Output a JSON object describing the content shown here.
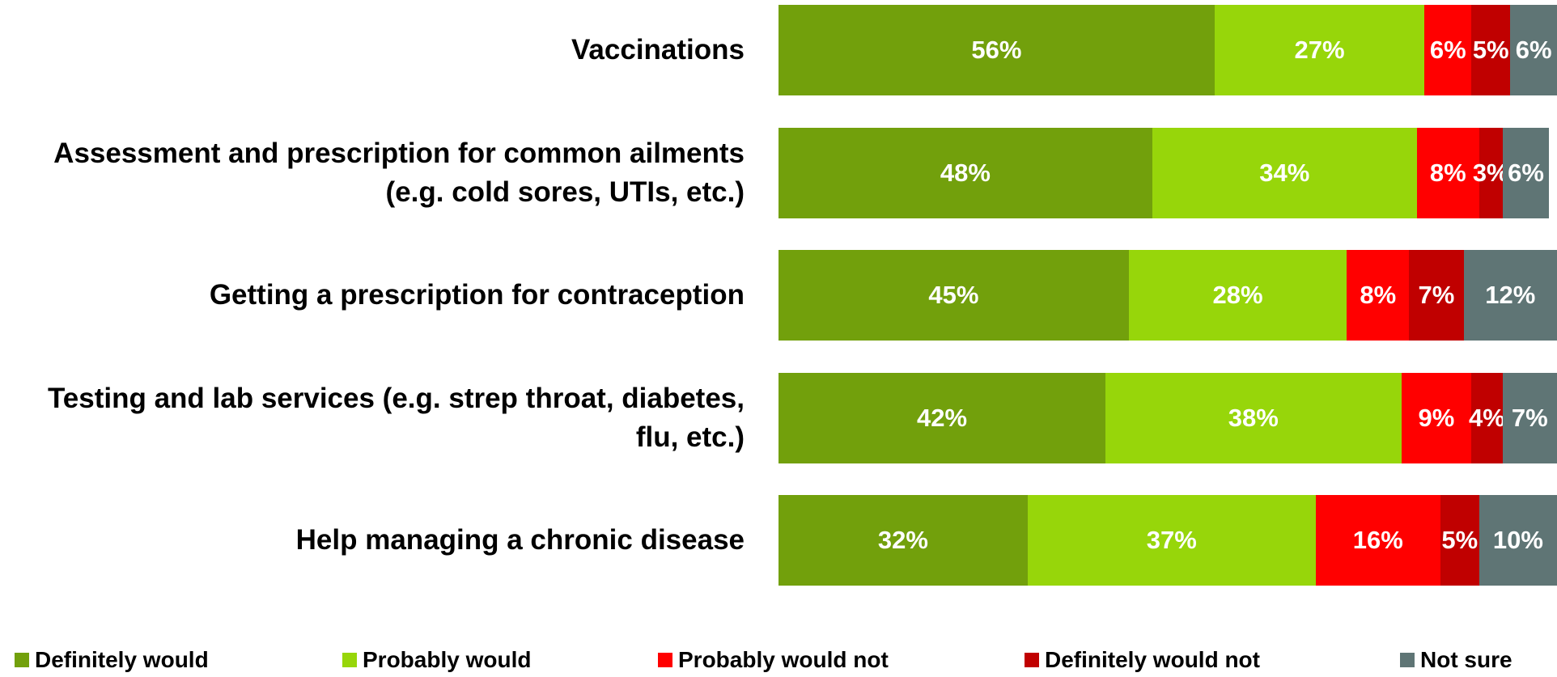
{
  "chart_data": {
    "type": "stacked_barh",
    "categories": [
      "Vaccinations",
      "Assessment and prescription for common ailments (e.g. cold sores, UTIs, etc.)",
      "Getting a prescription for contraception",
      "Testing and lab services (e.g. strep throat, diabetes, flu, etc.)",
      "Help managing a chronic disease"
    ],
    "series": [
      {
        "name": "Definitely would",
        "color": "#72a00c",
        "values": [
          56,
          48,
          45,
          42,
          32
        ],
        "value_labels": [
          "56%",
          "48%",
          "45%",
          "42%",
          "32%"
        ]
      },
      {
        "name": "Probably would",
        "color": "#97d60a",
        "values": [
          27,
          34,
          28,
          38,
          37
        ],
        "value_labels": [
          "27%",
          "34%",
          "28%",
          "38%",
          "37%"
        ]
      },
      {
        "name": "Probably would not",
        "color": "#ff0000",
        "values": [
          6,
          8,
          8,
          9,
          16
        ],
        "value_labels": [
          "6%",
          "8%",
          "8%",
          "9%",
          "16%"
        ]
      },
      {
        "name": "Definitely would not",
        "color": "#c00000",
        "values": [
          5,
          3,
          7,
          4,
          5
        ],
        "value_labels": [
          "5%",
          "3%",
          "7%",
          "4%",
          "5%"
        ]
      },
      {
        "name": "Not sure",
        "color": "#5f7575",
        "values": [
          6,
          6,
          12,
          7,
          10
        ],
        "value_labels": [
          "6%",
          "6%",
          "12%",
          "7%",
          "10%"
        ]
      }
    ],
    "legend": "bottom"
  }
}
